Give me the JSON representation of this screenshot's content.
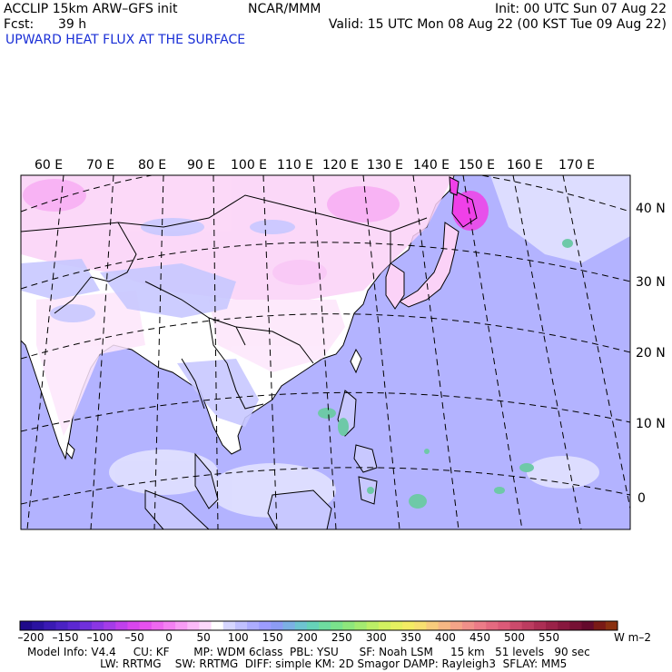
{
  "header": {
    "model": "ACCLIP 15km ARW–GFS init",
    "fcst_label": "Fcst:",
    "fcst_value": "39 h",
    "org": "NCAR/MMM",
    "init": "Init: 00 UTC Sun 07 Aug 22",
    "valid": "Valid: 15 UTC Mon 08 Aug 22 (00 KST Tue 09 Aug 22)",
    "field_title": "UPWARD HEAT FLUX AT THE SURFACE"
  },
  "map": {
    "lon_labels": [
      "60 E",
      "70 E",
      "80 E",
      "90 E",
      "100 E",
      "110 E",
      "120 E",
      "130 E",
      "140 E",
      "150 E",
      "160 E",
      "170 E"
    ],
    "lat_labels": [
      "40 N",
      "30 N",
      "20 N",
      "10 N",
      "0"
    ],
    "colors": {
      "land": "#ffffff",
      "ocean": "#b3b3ff",
      "land_pink": "#fbd2f7",
      "land_magenta": "#f46ef0",
      "land_blue": "#c8c8ff",
      "green": "#6ec9a8"
    }
  },
  "colorbar": {
    "unit": "W m–2",
    "tick_labels": [
      "–200",
      "–150",
      "–100",
      "–50",
      "0",
      "50",
      "100",
      "150",
      "200",
      "250",
      "300",
      "350",
      "400",
      "450",
      "500",
      "550"
    ]
  },
  "footer": {
    "line1": "Model Info: V4.4     CU: KF       MP: WDM 6class  PBL: YSU      SF: Noah LSM     15 km   51 levels   90 sec",
    "line2": "                     LW: RRTMG    SW: RRTMG  DIFF: simple KM: 2D Smagor DAMP: Rayleigh3  SFLAY: MM5"
  }
}
